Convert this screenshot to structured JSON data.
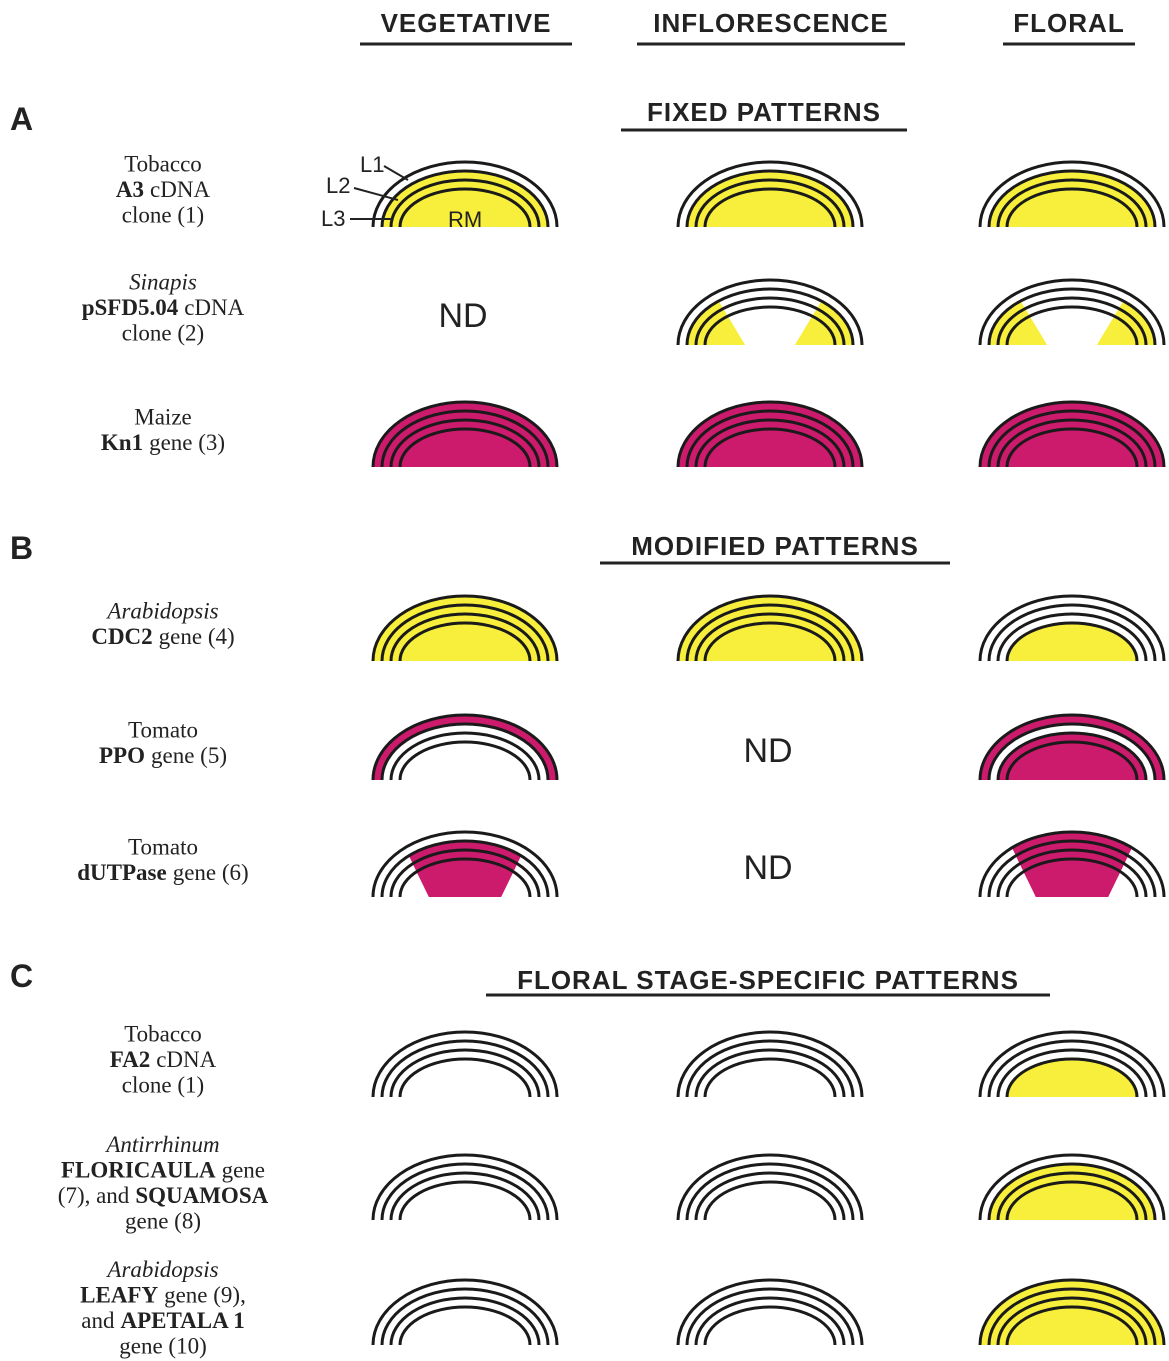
{
  "columns": [
    "VEGETATIVE",
    "INFLORESCENCE",
    "FLORAL"
  ],
  "layer_labels": {
    "l1": "L1",
    "l2": "L2",
    "l3": "L3",
    "rm": "RM"
  },
  "sections": [
    {
      "letter": "A",
      "title": "FIXED PATTERNS",
      "rows": [
        {
          "label": [
            [
              "Tobacco"
            ],
            [
              "A3",
              "cDNA"
            ],
            [
              "clone (1)"
            ]
          ],
          "cells": [
            null,
            null,
            null
          ]
        },
        {
          "label": [
            [
              "Sinapis"
            ],
            [
              "pSFD5.04",
              "cDNA"
            ],
            [
              "clone (2)"
            ]
          ],
          "cells": [
            "ND",
            null,
            null
          ]
        },
        {
          "label": [
            [
              "Maize"
            ],
            [
              "Kn1",
              "gene (3)"
            ]
          ],
          "cells": [
            null,
            null,
            null
          ]
        }
      ]
    },
    {
      "letter": "B",
      "title": "MODIFIED PATTERNS",
      "rows": [
        {
          "label": [
            [
              "Arabidopsis"
            ],
            [
              "CDC2",
              "gene (4)"
            ]
          ],
          "cells": [
            null,
            null,
            null
          ]
        },
        {
          "label": [
            [
              "Tomato"
            ],
            [
              "PPO",
              "gene (5)"
            ]
          ],
          "cells": [
            null,
            "ND",
            null
          ]
        },
        {
          "label": [
            [
              "Tomato"
            ],
            [
              "dUTPase",
              "gene (6)"
            ]
          ],
          "cells": [
            null,
            "ND",
            null
          ]
        }
      ]
    },
    {
      "letter": "C",
      "title": "FLORAL STAGE-SPECIFIC PATTERNS",
      "rows": [
        {
          "label": [
            [
              "Tobacco"
            ],
            [
              "FA2",
              "cDNA"
            ],
            [
              "clone (1)"
            ]
          ],
          "cells": [
            null,
            null,
            null
          ]
        },
        {
          "label": [
            [
              "Antirrhinum"
            ],
            [
              "FLORICAULA",
              "gene"
            ],
            [
              "(7), and",
              "SQUAMOSA"
            ],
            [
              "gene (8)"
            ]
          ],
          "cells": [
            null,
            null,
            null
          ]
        },
        {
          "label": [
            [
              "Arabidopsis"
            ],
            [
              "LEAFY",
              "gene (9),"
            ],
            [
              "and",
              "APETALA 1"
            ],
            [
              "gene (10)"
            ]
          ],
          "cells": [
            null,
            null,
            null
          ]
        }
      ]
    }
  ]
}
